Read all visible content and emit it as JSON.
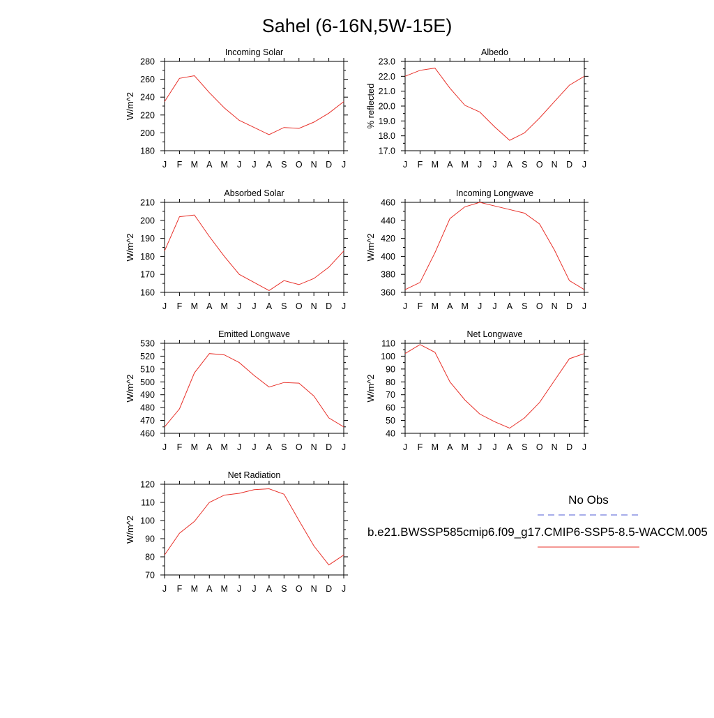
{
  "page": {
    "title": "Sahel (6-16N,5W-15E)"
  },
  "legend": {
    "obs_label": "No Obs",
    "obs_color": "#4f5bd5",
    "model_label": "b.e21.BWSSP585cmip6.f09_g17.CMIP6-SSP5-8.5-WACCM.005",
    "model_color": "#e8312a"
  },
  "chart_data": [
    {
      "type": "line",
      "title": "Incoming Solar",
      "xlabel": "",
      "ylabel": "W/m^2",
      "categories": [
        "J",
        "F",
        "M",
        "A",
        "M",
        "J",
        "J",
        "A",
        "S",
        "O",
        "N",
        "D",
        "J"
      ],
      "series": [
        {
          "values": [
            235,
            261,
            264,
            245,
            228,
            214,
            206,
            198,
            206,
            205,
            212,
            222,
            235
          ],
          "color": "#e8312a"
        }
      ],
      "ylim": [
        180,
        280
      ],
      "yticks": [
        180,
        200,
        220,
        240,
        260,
        280
      ],
      "ytick_labels": [
        "180",
        "200",
        "220",
        "240",
        "260",
        "280"
      ],
      "grid": false
    },
    {
      "type": "line",
      "title": "Albedo",
      "xlabel": "",
      "ylabel": "% reflected",
      "categories": [
        "J",
        "F",
        "M",
        "A",
        "M",
        "J",
        "J",
        "A",
        "S",
        "O",
        "N",
        "D",
        "J"
      ],
      "series": [
        {
          "values": [
            22.0,
            22.4,
            22.55,
            21.2,
            20.05,
            19.6,
            18.6,
            17.7,
            18.2,
            19.2,
            20.3,
            21.4,
            22.0
          ],
          "color": "#e8312a"
        }
      ],
      "ylim": [
        17.0,
        23.0
      ],
      "yticks": [
        17.0,
        18.0,
        19.0,
        20.0,
        21.0,
        22.0,
        23.0
      ],
      "ytick_labels": [
        "17.0",
        "18.0",
        "19.0",
        "20.0",
        "21.0",
        "22.0",
        "23.0"
      ],
      "grid": false
    },
    {
      "type": "line",
      "title": "Absorbed Solar",
      "xlabel": "",
      "ylabel": "W/m^2",
      "categories": [
        "J",
        "F",
        "M",
        "A",
        "M",
        "J",
        "J",
        "A",
        "S",
        "O",
        "N",
        "D",
        "J"
      ],
      "series": [
        {
          "values": [
            183,
            202,
            203,
            191,
            180,
            170,
            165.5,
            161,
            166.5,
            164.3,
            167.7,
            174,
            183
          ],
          "color": "#e8312a"
        }
      ],
      "ylim": [
        160,
        210
      ],
      "yticks": [
        160,
        170,
        180,
        190,
        200,
        210
      ],
      "ytick_labels": [
        "160",
        "170",
        "180",
        "190",
        "200",
        "210"
      ],
      "grid": false
    },
    {
      "type": "line",
      "title": "Incoming Longwave",
      "xlabel": "",
      "ylabel": "W/m^2",
      "categories": [
        "J",
        "F",
        "M",
        "A",
        "M",
        "J",
        "J",
        "A",
        "S",
        "O",
        "N",
        "D",
        "J"
      ],
      "series": [
        {
          "values": [
            363,
            371,
            404,
            442,
            455,
            460,
            456,
            452,
            448,
            436,
            407,
            373,
            363
          ],
          "color": "#e8312a"
        }
      ],
      "ylim": [
        360,
        460
      ],
      "yticks": [
        360,
        380,
        400,
        420,
        440,
        460
      ],
      "ytick_labels": [
        "360",
        "380",
        "400",
        "420",
        "440",
        "460"
      ],
      "grid": false
    },
    {
      "type": "line",
      "title": "Emitted Longwave",
      "xlabel": "",
      "ylabel": "W/m^2",
      "categories": [
        "J",
        "F",
        "M",
        "A",
        "M",
        "J",
        "J",
        "A",
        "S",
        "O",
        "N",
        "D",
        "J"
      ],
      "series": [
        {
          "values": [
            465,
            479,
            507,
            522,
            521,
            515,
            505,
            496,
            499.5,
            499,
            489,
            472,
            465
          ],
          "color": "#e8312a"
        }
      ],
      "ylim": [
        460,
        530
      ],
      "yticks": [
        460,
        470,
        480,
        490,
        500,
        510,
        520,
        530
      ],
      "ytick_labels": [
        "460",
        "470",
        "480",
        "490",
        "500",
        "510",
        "520",
        "530"
      ],
      "grid": false
    },
    {
      "type": "line",
      "title": "Net Longwave",
      "xlabel": "",
      "ylabel": "W/m^2",
      "categories": [
        "J",
        "F",
        "M",
        "A",
        "M",
        "J",
        "J",
        "A",
        "S",
        "O",
        "N",
        "D",
        "J"
      ],
      "series": [
        {
          "values": [
            102,
            109,
            103,
            80,
            66,
            55,
            49,
            44,
            52,
            64,
            81,
            98,
            102
          ],
          "color": "#e8312a"
        }
      ],
      "ylim": [
        40,
        110
      ],
      "yticks": [
        40,
        50,
        60,
        70,
        80,
        90,
        100,
        110
      ],
      "ytick_labels": [
        "40",
        "50",
        "60",
        "70",
        "80",
        "90",
        "100",
        "110"
      ],
      "grid": false
    },
    {
      "type": "line",
      "title": "Net Radiation",
      "xlabel": "",
      "ylabel": "W/m^2",
      "categories": [
        "J",
        "F",
        "M",
        "A",
        "M",
        "J",
        "J",
        "A",
        "S",
        "O",
        "N",
        "D",
        "J"
      ],
      "series": [
        {
          "values": [
            81,
            93,
            99.5,
            110,
            114,
            115,
            117,
            117.5,
            114.5,
            100,
            86,
            75.5,
            81
          ],
          "color": "#e8312a"
        }
      ],
      "ylim": [
        70,
        120
      ],
      "yticks": [
        70,
        80,
        90,
        100,
        110,
        120
      ],
      "ytick_labels": [
        "70",
        "80",
        "90",
        "100",
        "110",
        "120"
      ],
      "grid": false
    }
  ]
}
